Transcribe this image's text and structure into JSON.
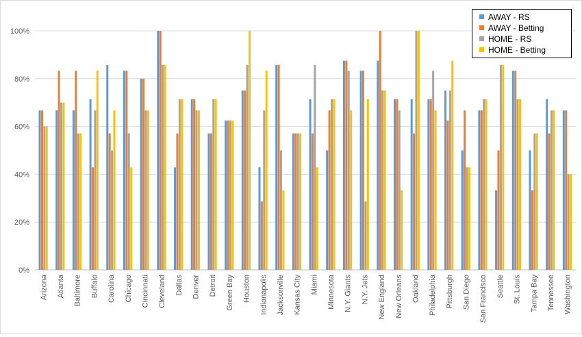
{
  "chart_data": {
    "type": "bar",
    "title": "",
    "xlabel": "",
    "ylabel": "",
    "ylim": [
      0,
      1
    ],
    "y_ticks": [
      "0%",
      "20%",
      "40%",
      "60%",
      "80%",
      "100%"
    ],
    "y_tick_values": [
      0,
      0.2,
      0.4,
      0.6,
      0.8,
      1.0
    ],
    "grid": "horizontal",
    "legend_placement": "top-right",
    "categories": [
      "Arizona",
      "Atlanta",
      "Baltimore",
      "Buffalo",
      "Carolina",
      "Chicago",
      "Cincinnati",
      "Cleveland",
      "Dallas",
      "Denver",
      "Detroit",
      "Green Bay",
      "Houston",
      "Indianapolis",
      "Jacksonville",
      "Kansas City",
      "Miami",
      "Minnesota",
      "N.Y. Giants",
      "N.Y. Jets",
      "New England",
      "New Orleans",
      "Oakland",
      "Philadelphia",
      "Pittsburgh",
      "San Diego",
      "San Francisco",
      "Seattle",
      "St. Louis",
      "Tampa Bay",
      "Tennessee",
      "Washington"
    ],
    "series": [
      {
        "name": "AWAY - RS",
        "color": "#5b9bd5",
        "values": [
          0.667,
          0.667,
          0.667,
          0.714,
          0.857,
          0.833,
          0.8,
          1.0,
          0.429,
          0.714,
          0.571,
          0.625,
          0.75,
          0.429,
          0.857,
          0.571,
          0.714,
          0.5,
          0.875,
          0.833,
          0.875,
          0.714,
          0.714,
          0.714,
          0.75,
          0.5,
          0.667,
          0.333,
          0.833,
          0.5,
          0.714,
          0.667
        ]
      },
      {
        "name": "AWAY - Betting",
        "color": "#ed7d31",
        "values": [
          0.667,
          0.833,
          0.833,
          0.429,
          0.571,
          0.833,
          0.8,
          1.0,
          0.571,
          0.714,
          0.571,
          0.625,
          0.75,
          0.286,
          0.857,
          0.571,
          0.571,
          0.667,
          0.875,
          0.833,
          1.0,
          0.714,
          0.571,
          0.714,
          0.625,
          0.667,
          0.667,
          0.5,
          0.833,
          0.333,
          0.571,
          0.667
        ]
      },
      {
        "name": "HOME - RS",
        "color": "#a5a5a5",
        "values": [
          0.6,
          0.7,
          0.571,
          0.667,
          0.5,
          0.571,
          0.667,
          0.857,
          0.714,
          0.667,
          0.714,
          0.625,
          0.857,
          0.667,
          0.5,
          0.571,
          0.857,
          0.714,
          0.833,
          0.286,
          0.75,
          0.667,
          1.0,
          0.833,
          0.75,
          0.429,
          0.714,
          0.857,
          0.714,
          0.571,
          0.667,
          0.4
        ]
      },
      {
        "name": "HOME - Betting",
        "color": "#ffc000",
        "values": [
          0.6,
          0.7,
          0.571,
          0.833,
          0.667,
          0.429,
          0.667,
          0.857,
          0.714,
          0.667,
          0.714,
          0.625,
          1.0,
          0.833,
          0.333,
          0.571,
          0.429,
          0.714,
          0.667,
          0.714,
          0.75,
          0.333,
          1.0,
          0.667,
          0.875,
          0.429,
          0.714,
          0.857,
          0.714,
          0.571,
          0.667,
          0.4
        ]
      }
    ]
  }
}
